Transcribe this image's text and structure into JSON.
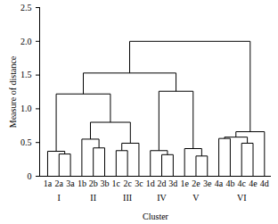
{
  "chart_data": {
    "type": "dendrogram",
    "x_label": "Cluster",
    "y_label": "Measure of distance",
    "categories": [
      "1a",
      "2a",
      "3a",
      "1b",
      "2b",
      "3b",
      "1c",
      "2c",
      "3c",
      "1d",
      "2d",
      "3d",
      "1e",
      "2e",
      "3e",
      "4a",
      "4b",
      "4c",
      "4e",
      "4d"
    ],
    "tree": {
      "height": 2.0,
      "children": [
        {
          "height": 1.53,
          "children": [
            {
              "height": 1.22,
              "children": [
                {
                  "height": 0.37,
                  "children": [
                    "1a",
                    {
                      "height": 0.33,
                      "children": [
                        "2a",
                        "3a"
                      ]
                    }
                  ]
                },
                {
                  "height": 0.8,
                  "children": [
                    {
                      "height": 0.55,
                      "children": [
                        "1b",
                        {
                          "height": 0.42,
                          "children": [
                            "2b",
                            "3b"
                          ]
                        }
                      ]
                    },
                    {
                      "height": 0.49,
                      "children": [
                        {
                          "height": 0.38,
                          "children": [
                            "1c",
                            "2c"
                          ]
                        },
                        "3c"
                      ]
                    }
                  ]
                }
              ]
            },
            {
              "height": 1.26,
              "children": [
                {
                  "height": 0.38,
                  "children": [
                    "1d",
                    {
                      "height": 0.32,
                      "children": [
                        "2d",
                        "3d"
                      ]
                    }
                  ]
                },
                {
                  "height": 0.41,
                  "children": [
                    "1e",
                    {
                      "height": 0.3,
                      "children": [
                        "2e",
                        "3e"
                      ]
                    }
                  ]
                }
              ]
            }
          ]
        },
        {
          "height": 0.66,
          "children": [
            {
              "height": 0.58,
              "children": [
                {
                  "height": 0.56,
                  "children": [
                    "4a",
                    "4b"
                  ]
                },
                {
                  "height": 0.49,
                  "children": [
                    "4c",
                    "4e"
                  ]
                }
              ]
            },
            "4d"
          ]
        }
      ]
    },
    "groups": [
      {
        "label": "I",
        "leaves": [
          "1a",
          "2a",
          "3a"
        ]
      },
      {
        "label": "II",
        "leaves": [
          "1b",
          "2b",
          "3b"
        ]
      },
      {
        "label": "III",
        "leaves": [
          "1c",
          "2c",
          "3c"
        ]
      },
      {
        "label": "IV",
        "leaves": [
          "1d",
          "2d",
          "3d"
        ]
      },
      {
        "label": "V",
        "leaves": [
          "1e",
          "2e",
          "3e"
        ]
      },
      {
        "label": "VI",
        "leaves": [
          "4a",
          "4b",
          "4c",
          "4e",
          "4d"
        ]
      }
    ],
    "color": "#000000",
    "ylim": [
      0,
      2.5
    ],
    "yticks": [
      0,
      0.5,
      {
        "value": 1,
        "label": "1.0"
      },
      1.5,
      {
        "value": 2,
        "label": "2.0"
      },
      2.5
    ]
  }
}
